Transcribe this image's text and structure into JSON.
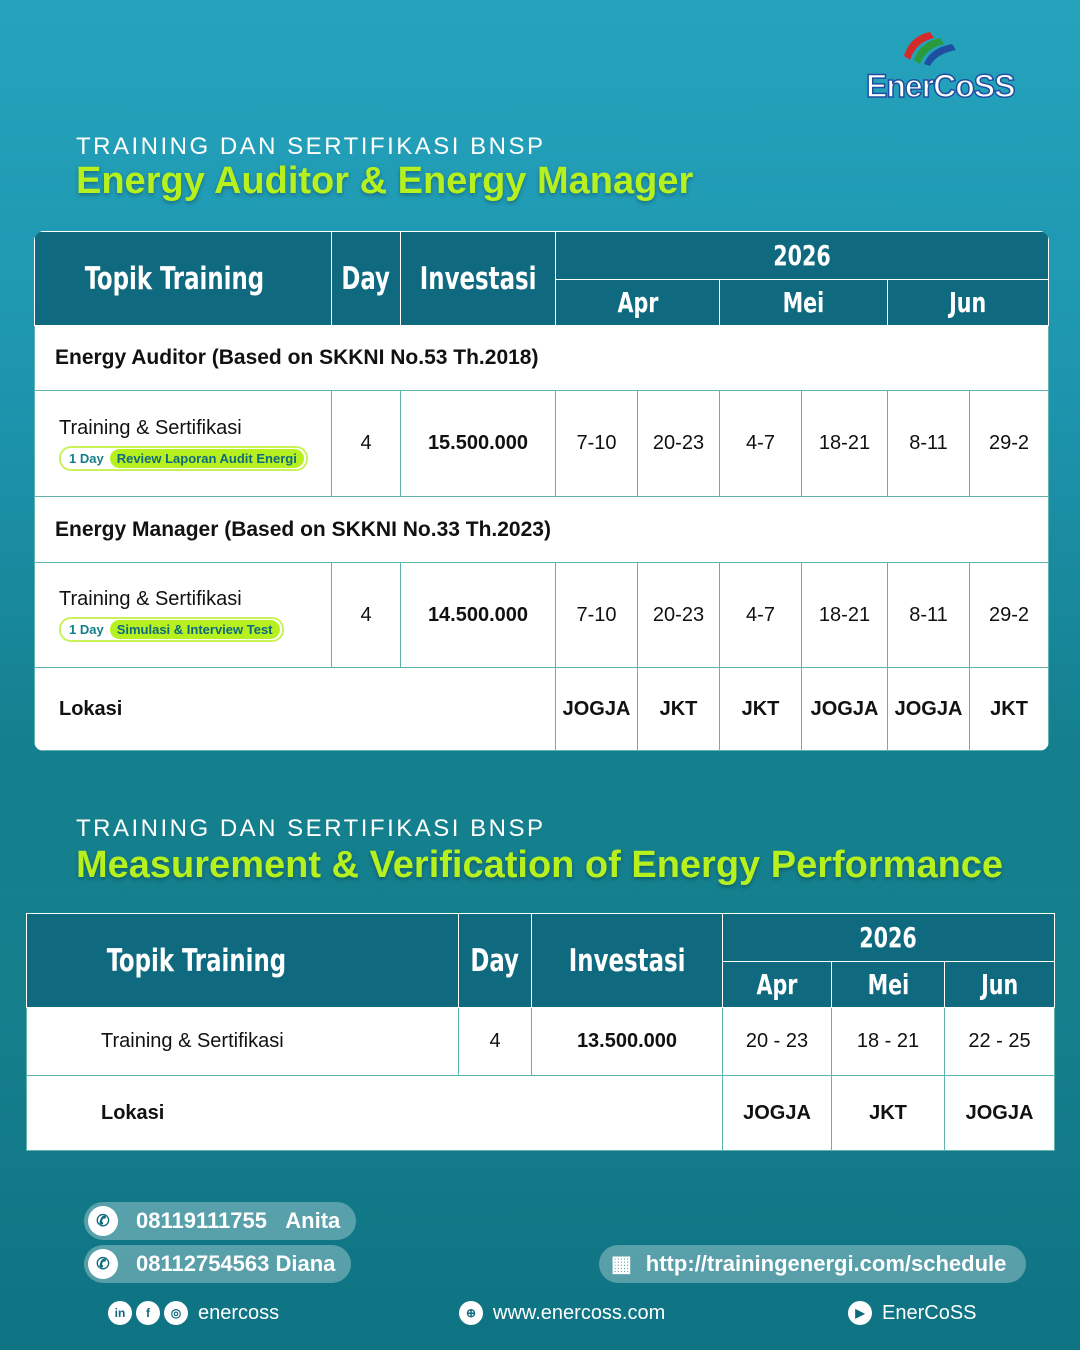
{
  "brand": {
    "logo_text": "EnerCoSS"
  },
  "section1": {
    "subtitle": "TRAINING DAN SERTIFIKASI BNSP",
    "title": "Energy Auditor & Energy Manager",
    "headers": {
      "topik": "Topik Training",
      "day": "Day",
      "investasi": "Investasi",
      "year": "2026",
      "months": [
        "Apr",
        "Mei",
        "Jun"
      ]
    },
    "groups": [
      {
        "heading": "Energy Auditor (Based on SKKNI No.53 Th.2018)",
        "row": {
          "label": "Training & Sertifikasi",
          "badge_day": "1 Day",
          "badge_text": "Review Laporan Audit Energi",
          "day": "4",
          "investasi": "15.500.000",
          "dates": [
            "7-10",
            "20-23",
            "4-7",
            "18-21",
            "8-11",
            "29-2"
          ]
        }
      },
      {
        "heading": "Energy Manager (Based on SKKNI No.33 Th.2023)",
        "row": {
          "label": "Training & Sertifikasi",
          "badge_day": "1 Day",
          "badge_text": "Simulasi & Interview Test",
          "day": "4",
          "investasi": "14.500.000",
          "dates": [
            "7-10",
            "20-23",
            "4-7",
            "18-21",
            "8-11",
            "29-2"
          ]
        }
      }
    ],
    "lokasi": {
      "label": "Lokasi",
      "values": [
        "JOGJA",
        "JKT",
        "JKT",
        "JOGJA",
        "JOGJA",
        "JKT"
      ]
    }
  },
  "section2": {
    "subtitle": "TRAINING DAN SERTIFIKASI BNSP",
    "title": "Measurement & Verification of Energy Performance",
    "headers": {
      "topik": "Topik Training",
      "day": "Day",
      "investasi": "Investasi",
      "year": "2026",
      "months": [
        "Apr",
        "Mei",
        "Jun"
      ]
    },
    "row": {
      "label": "Training & Sertifikasi",
      "day": "4",
      "investasi": "13.500.000",
      "dates": [
        "20 - 23",
        "18 - 21",
        "22 - 25"
      ]
    },
    "lokasi": {
      "label": "Lokasi",
      "values": [
        "JOGJA",
        "JKT",
        "JOGJA"
      ]
    }
  },
  "contacts": [
    {
      "phone": "08119111755",
      "name": "Anita"
    },
    {
      "phone": "08112754563",
      "name": "Diana"
    }
  ],
  "schedule_url": "http://trainingenergi.com/schedule",
  "social": {
    "handle": "enercoss",
    "website": "www.enercoss.com",
    "youtube": "EnerCoSS"
  }
}
